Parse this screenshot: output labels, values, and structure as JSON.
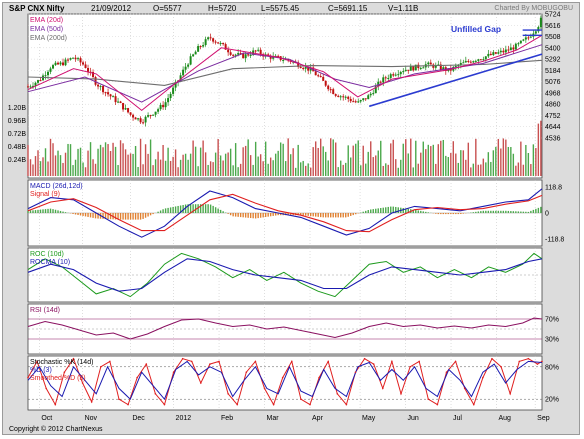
{
  "header": {
    "title": "S&P CNX Nifty",
    "date": "21/09/2012",
    "open": "O=5577",
    "high": "H=5720",
    "low": "L=5575.45",
    "close": "C=5691.15",
    "volume": "V=1.11B",
    "brand": "Charted By MOBUGOBU"
  },
  "footer": {
    "copyright": "Copyright © 2012 ChartNexus"
  },
  "annotation": {
    "gap_label": "Unfilled Gap"
  },
  "colors": {
    "up": "#1a8a1a",
    "down": "#c01010",
    "ema20": "#d01070",
    "ema50": "#7b2ca0",
    "ema200": "#6e6e6e",
    "trend": "#2b3bd0",
    "macd": "#1a1ab0",
    "signal": "#e02020",
    "roc": "#1c9a1c",
    "rocma": "#1a1ab0",
    "rsi": "#8a1060",
    "stoch": "#e02020",
    "stoch_d": "#1a1ab0"
  },
  "chart_data": [
    {
      "type": "candlestick",
      "title": "",
      "legend": [
        "EMA (20d)",
        "EMA (50d)",
        "EMA (200d)"
      ],
      "y_ticks": [
        "5724",
        "5616",
        "5508",
        "5400",
        "5292",
        "5184",
        "5076",
        "4968",
        "4860",
        "4752",
        "4644",
        "4536"
      ],
      "ylim": [
        4536,
        5724
      ],
      "x_ticks": [
        "Oct",
        "Nov",
        "Dec",
        "2012",
        "Feb",
        "Mar",
        "Apr",
        "May",
        "Jun",
        "Jul",
        "Aug",
        "Sep"
      ],
      "close_path": [
        [
          0,
          5030
        ],
        [
          10,
          5090
        ],
        [
          20,
          5220
        ],
        [
          30,
          5250
        ],
        [
          40,
          5310
        ],
        [
          50,
          5230
        ],
        [
          60,
          5060
        ],
        [
          70,
          4960
        ],
        [
          80,
          4870
        ],
        [
          90,
          4760
        ],
        [
          100,
          4700
        ],
        [
          110,
          4780
        ],
        [
          120,
          4860
        ],
        [
          130,
          5050
        ],
        [
          140,
          5250
        ],
        [
          150,
          5400
        ],
        [
          160,
          5500
        ],
        [
          170,
          5430
        ],
        [
          180,
          5340
        ],
        [
          190,
          5320
        ],
        [
          200,
          5370
        ],
        [
          210,
          5320
        ],
        [
          220,
          5300
        ],
        [
          230,
          5280
        ],
        [
          240,
          5230
        ],
        [
          250,
          5180
        ],
        [
          260,
          5070
        ],
        [
          270,
          4960
        ],
        [
          280,
          4920
        ],
        [
          290,
          4870
        ],
        [
          300,
          4940
        ],
        [
          310,
          5080
        ],
        [
          320,
          5150
        ],
        [
          330,
          5190
        ],
        [
          340,
          5210
        ],
        [
          350,
          5240
        ],
        [
          360,
          5220
        ],
        [
          370,
          5180
        ],
        [
          380,
          5240
        ],
        [
          390,
          5280
        ],
        [
          400,
          5310
        ],
        [
          410,
          5340
        ],
        [
          420,
          5370
        ],
        [
          430,
          5420
        ],
        [
          440,
          5500
        ],
        [
          448,
          5600
        ],
        [
          452,
          5690
        ]
      ],
      "ema20": [
        [
          0,
          5000
        ],
        [
          40,
          5200
        ],
        [
          60,
          5150
        ],
        [
          100,
          4800
        ],
        [
          140,
          5150
        ],
        [
          170,
          5400
        ],
        [
          220,
          5310
        ],
        [
          260,
          5170
        ],
        [
          290,
          4930
        ],
        [
          320,
          5100
        ],
        [
          370,
          5190
        ],
        [
          400,
          5270
        ],
        [
          430,
          5380
        ],
        [
          452,
          5520
        ]
      ],
      "ema50": [
        [
          0,
          4980
        ],
        [
          50,
          5120
        ],
        [
          100,
          4880
        ],
        [
          150,
          5180
        ],
        [
          190,
          5350
        ],
        [
          230,
          5290
        ],
        [
          270,
          5100
        ],
        [
          300,
          5020
        ],
        [
          340,
          5150
        ],
        [
          400,
          5250
        ],
        [
          452,
          5430
        ]
      ],
      "ema200": [
        [
          0,
          5120
        ],
        [
          60,
          5100
        ],
        [
          120,
          5040
        ],
        [
          180,
          5200
        ],
        [
          250,
          5230
        ],
        [
          320,
          5220
        ],
        [
          400,
          5240
        ],
        [
          452,
          5280
        ]
      ],
      "trend_line": [
        [
          300,
          4840
        ],
        [
          452,
          5340
        ]
      ],
      "gap_box": [
        5520,
        5570
      ],
      "volume_label_ticks": [
        "1.20B",
        "0.96B",
        "0.72B",
        "0.48B",
        "0.24B"
      ]
    },
    {
      "type": "line",
      "title": "",
      "legend": [
        "MACD (26d,12d)",
        "Signal (9)"
      ],
      "y_ticks": [
        "118.8",
        "0",
        "-118.8"
      ],
      "ylim": [
        -150,
        150
      ],
      "macd": [
        [
          0,
          20
        ],
        [
          20,
          70
        ],
        [
          40,
          60
        ],
        [
          60,
          0
        ],
        [
          80,
          -60
        ],
        [
          100,
          -110
        ],
        [
          120,
          -60
        ],
        [
          140,
          30
        ],
        [
          160,
          100
        ],
        [
          180,
          70
        ],
        [
          200,
          20
        ],
        [
          220,
          0
        ],
        [
          240,
          -20
        ],
        [
          260,
          -60
        ],
        [
          280,
          -100
        ],
        [
          300,
          -70
        ],
        [
          320,
          0
        ],
        [
          340,
          30
        ],
        [
          360,
          20
        ],
        [
          380,
          10
        ],
        [
          400,
          30
        ],
        [
          420,
          50
        ],
        [
          440,
          60
        ],
        [
          452,
          110
        ]
      ],
      "signal": [
        [
          0,
          10
        ],
        [
          20,
          50
        ],
        [
          40,
          65
        ],
        [
          60,
          25
        ],
        [
          80,
          -30
        ],
        [
          100,
          -80
        ],
        [
          120,
          -80
        ],
        [
          140,
          -10
        ],
        [
          160,
          60
        ],
        [
          180,
          85
        ],
        [
          200,
          45
        ],
        [
          220,
          10
        ],
        [
          240,
          -10
        ],
        [
          260,
          -40
        ],
        [
          280,
          -80
        ],
        [
          300,
          -85
        ],
        [
          320,
          -30
        ],
        [
          340,
          15
        ],
        [
          360,
          25
        ],
        [
          380,
          15
        ],
        [
          400,
          20
        ],
        [
          420,
          40
        ],
        [
          440,
          55
        ],
        [
          452,
          80
        ]
      ]
    },
    {
      "type": "line",
      "title": "",
      "legend": [
        "ROC (10d)",
        "ROCMA (10)"
      ],
      "ylim": [
        -10,
        10
      ],
      "roc": [
        [
          0,
          2
        ],
        [
          15,
          6
        ],
        [
          30,
          3
        ],
        [
          45,
          -2
        ],
        [
          60,
          -7
        ],
        [
          75,
          -5
        ],
        [
          90,
          -8
        ],
        [
          105,
          -3
        ],
        [
          120,
          4
        ],
        [
          135,
          8
        ],
        [
          150,
          6
        ],
        [
          165,
          3
        ],
        [
          180,
          -1
        ],
        [
          195,
          2
        ],
        [
          210,
          -2
        ],
        [
          225,
          1
        ],
        [
          240,
          -3
        ],
        [
          255,
          -6
        ],
        [
          270,
          -8
        ],
        [
          285,
          -2
        ],
        [
          300,
          4
        ],
        [
          315,
          5
        ],
        [
          330,
          1
        ],
        [
          345,
          3
        ],
        [
          360,
          -1
        ],
        [
          375,
          2
        ],
        [
          390,
          -1
        ],
        [
          405,
          3
        ],
        [
          420,
          1
        ],
        [
          435,
          4
        ],
        [
          445,
          8
        ],
        [
          452,
          6
        ]
      ],
      "rocma": [
        [
          0,
          1
        ],
        [
          20,
          4
        ],
        [
          40,
          2
        ],
        [
          60,
          -3
        ],
        [
          80,
          -6
        ],
        [
          100,
          -5
        ],
        [
          120,
          1
        ],
        [
          140,
          6
        ],
        [
          160,
          5
        ],
        [
          180,
          2
        ],
        [
          200,
          0
        ],
        [
          220,
          -1
        ],
        [
          240,
          -2
        ],
        [
          260,
          -5
        ],
        [
          280,
          -5
        ],
        [
          300,
          0
        ],
        [
          320,
          3
        ],
        [
          340,
          2
        ],
        [
          360,
          1
        ],
        [
          380,
          0
        ],
        [
          400,
          1
        ],
        [
          420,
          2
        ],
        [
          440,
          5
        ],
        [
          452,
          6
        ]
      ]
    },
    {
      "type": "line",
      "title": "",
      "legend": [
        "RSI (14d)"
      ],
      "y_ticks": [
        "70%",
        "30%"
      ],
      "ylim": [
        0,
        100
      ],
      "rsi": [
        [
          0,
          55
        ],
        [
          15,
          65
        ],
        [
          30,
          58
        ],
        [
          45,
          48
        ],
        [
          60,
          38
        ],
        [
          75,
          42
        ],
        [
          90,
          30
        ],
        [
          105,
          40
        ],
        [
          120,
          55
        ],
        [
          135,
          68
        ],
        [
          150,
          70
        ],
        [
          165,
          62
        ],
        [
          180,
          55
        ],
        [
          195,
          58
        ],
        [
          210,
          50
        ],
        [
          225,
          54
        ],
        [
          240,
          47
        ],
        [
          255,
          40
        ],
        [
          270,
          33
        ],
        [
          285,
          42
        ],
        [
          300,
          55
        ],
        [
          315,
          62
        ],
        [
          330,
          55
        ],
        [
          345,
          58
        ],
        [
          360,
          52
        ],
        [
          375,
          56
        ],
        [
          390,
          52
        ],
        [
          405,
          58
        ],
        [
          420,
          55
        ],
        [
          435,
          62
        ],
        [
          445,
          72
        ],
        [
          452,
          70
        ]
      ]
    },
    {
      "type": "line",
      "title": "",
      "legend": [
        "Stochastic %K (14d)",
        "%D (3)",
        "Smoothed %D (3)"
      ],
      "y_ticks": [
        "80%",
        "20%"
      ],
      "ylim": [
        0,
        100
      ],
      "stoch_k": [
        [
          0,
          60
        ],
        [
          8,
          90
        ],
        [
          16,
          40
        ],
        [
          24,
          10
        ],
        [
          32,
          70
        ],
        [
          40,
          95
        ],
        [
          48,
          50
        ],
        [
          56,
          15
        ],
        [
          64,
          80
        ],
        [
          72,
          90
        ],
        [
          80,
          20
        ],
        [
          88,
          10
        ],
        [
          96,
          60
        ],
        [
          104,
          85
        ],
        [
          112,
          30
        ],
        [
          120,
          10
        ],
        [
          128,
          70
        ],
        [
          136,
          95
        ],
        [
          144,
          90
        ],
        [
          152,
          50
        ],
        [
          160,
          85
        ],
        [
          168,
          90
        ],
        [
          176,
          30
        ],
        [
          184,
          10
        ],
        [
          192,
          70
        ],
        [
          200,
          90
        ],
        [
          208,
          40
        ],
        [
          216,
          10
        ],
        [
          224,
          60
        ],
        [
          232,
          90
        ],
        [
          240,
          20
        ],
        [
          248,
          10
        ],
        [
          256,
          60
        ],
        [
          264,
          90
        ],
        [
          272,
          30
        ],
        [
          280,
          10
        ],
        [
          288,
          70
        ],
        [
          296,
          95
        ],
        [
          304,
          85
        ],
        [
          312,
          40
        ],
        [
          320,
          90
        ],
        [
          328,
          30
        ],
        [
          336,
          80
        ],
        [
          344,
          90
        ],
        [
          352,
          20
        ],
        [
          360,
          10
        ],
        [
          368,
          70
        ],
        [
          376,
          90
        ],
        [
          384,
          40
        ],
        [
          392,
          10
        ],
        [
          400,
          60
        ],
        [
          408,
          95
        ],
        [
          416,
          80
        ],
        [
          424,
          30
        ],
        [
          432,
          90
        ],
        [
          440,
          95
        ],
        [
          448,
          85
        ],
        [
          452,
          90
        ]
      ],
      "stoch_d": [
        [
          0,
          55
        ],
        [
          10,
          80
        ],
        [
          20,
          45
        ],
        [
          30,
          25
        ],
        [
          40,
          80
        ],
        [
          50,
          55
        ],
        [
          60,
          30
        ],
        [
          70,
          80
        ],
        [
          80,
          40
        ],
        [
          90,
          20
        ],
        [
          100,
          70
        ],
        [
          110,
          45
        ],
        [
          120,
          20
        ],
        [
          130,
          75
        ],
        [
          140,
          90
        ],
        [
          150,
          65
        ],
        [
          160,
          80
        ],
        [
          170,
          70
        ],
        [
          180,
          25
        ],
        [
          190,
          55
        ],
        [
          200,
          80
        ],
        [
          210,
          40
        ],
        [
          220,
          30
        ],
        [
          230,
          80
        ],
        [
          240,
          35
        ],
        [
          250,
          25
        ],
        [
          260,
          75
        ],
        [
          270,
          40
        ],
        [
          280,
          25
        ],
        [
          290,
          80
        ],
        [
          300,
          88
        ],
        [
          310,
          55
        ],
        [
          320,
          75
        ],
        [
          330,
          55
        ],
        [
          340,
          80
        ],
        [
          350,
          40
        ],
        [
          360,
          25
        ],
        [
          370,
          75
        ],
        [
          380,
          55
        ],
        [
          390,
          25
        ],
        [
          400,
          70
        ],
        [
          410,
          85
        ],
        [
          420,
          50
        ],
        [
          430,
          75
        ],
        [
          440,
          90
        ],
        [
          452,
          88
        ]
      ]
    }
  ]
}
